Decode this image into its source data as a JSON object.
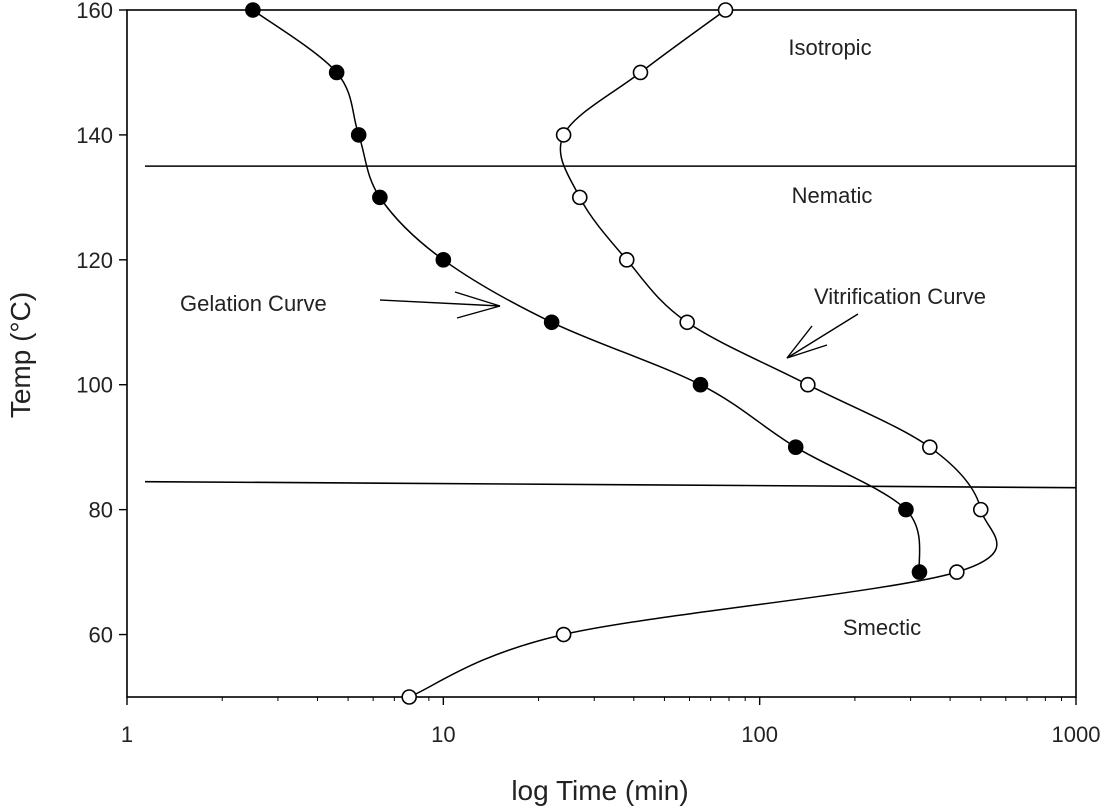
{
  "chart_data": {
    "type": "scatter",
    "title": "",
    "xlabel": "log Time (min)",
    "ylabel": "Temp (°C)",
    "xscale": "log",
    "xlim": [
      1,
      1000
    ],
    "ylim": [
      50,
      160
    ],
    "xticks": [
      "1",
      "10",
      "100",
      "1000"
    ],
    "yticks": [
      "60",
      "80",
      "100",
      "120",
      "140",
      "160"
    ],
    "grid": false,
    "series": [
      {
        "name": "Gelation Curve",
        "marker": "filled-circle",
        "color": "#000000",
        "points": [
          {
            "x": 2.5,
            "y": 160
          },
          {
            "x": 4.6,
            "y": 150
          },
          {
            "x": 5.4,
            "y": 140
          },
          {
            "x": 6.3,
            "y": 130
          },
          {
            "x": 10,
            "y": 120
          },
          {
            "x": 22,
            "y": 110
          },
          {
            "x": 65,
            "y": 100
          },
          {
            "x": 130,
            "y": 90
          },
          {
            "x": 290,
            "y": 80
          },
          {
            "x": 320,
            "y": 70
          }
        ]
      },
      {
        "name": "Vitrification Curve",
        "marker": "open-circle",
        "color": "#000000",
        "points": [
          {
            "x": 78,
            "y": 160
          },
          {
            "x": 42,
            "y": 150
          },
          {
            "x": 24,
            "y": 140
          },
          {
            "x": 27,
            "y": 130
          },
          {
            "x": 38,
            "y": 120
          },
          {
            "x": 59,
            "y": 110
          },
          {
            "x": 142,
            "y": 100
          },
          {
            "x": 345,
            "y": 90
          },
          {
            "x": 500,
            "y": 80
          },
          {
            "x": 420,
            "y": 70
          },
          {
            "x": 24,
            "y": 60
          },
          {
            "x": 7.8,
            "y": 50
          }
        ]
      }
    ],
    "phase_boundaries": [
      135,
      84
    ],
    "region_labels": [
      "Isotropic",
      "Nematic",
      "Smectic"
    ],
    "annotations": [
      "Gelation Curve",
      "Vitrification Curve"
    ]
  }
}
